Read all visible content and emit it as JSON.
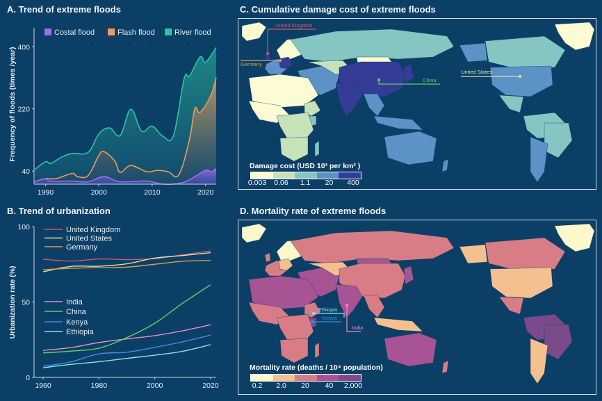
{
  "panels": {
    "a": {
      "title": "A. Trend of extreme floods"
    },
    "b": {
      "title": "B. Trend of urbanization"
    },
    "c": {
      "title": "C. Cumulative damage cost of extreme floods"
    },
    "d": {
      "title": "D. Mortality rate of extreme floods"
    }
  },
  "chart_data": [
    {
      "id": "a",
      "type": "area",
      "title": "A. Trend of extreme floods",
      "xlabel": "",
      "ylabel": "Frequency of floods (times /year)",
      "xlim": [
        1988,
        2022
      ],
      "ylim": [
        2,
        455
      ],
      "xticks": [
        1990,
        2000,
        2010,
        2020
      ],
      "yticks": [
        40,
        220,
        400
      ],
      "legend": {
        "placement": "top",
        "entries": [
          "Costal flood",
          "Flash flood",
          "River flood"
        ]
      },
      "stacked": true,
      "series": [
        {
          "name": "Costal flood",
          "color": "#9d6cf0",
          "x": [
            1988,
            1990,
            1991,
            1995,
            1998,
            2001,
            2004,
            2009,
            2012,
            2015,
            2017,
            2020,
            2021,
            2022
          ],
          "values": [
            9,
            18,
            11,
            11,
            9,
            24,
            9,
            11,
            2,
            4,
            15,
            42,
            38,
            47
          ]
        },
        {
          "name": "Flash flood",
          "color": "#f0995a",
          "x": [
            1988,
            1990,
            1992,
            1995,
            1996,
            1998,
            2000,
            2001,
            2003,
            2004,
            2006,
            2009,
            2011,
            2013,
            2015,
            2017,
            2018,
            2019,
            2021,
            2022
          ],
          "values": [
            9,
            18,
            18,
            33,
            24,
            27,
            85,
            96,
            69,
            36,
            56,
            38,
            42,
            38,
            29,
            132,
            221,
            210,
            259,
            311
          ]
        },
        {
          "name": "River flood",
          "color": "#2fc4a0",
          "x": [
            1988,
            1990,
            1991,
            1993,
            1995,
            1998,
            2000,
            2002,
            2004,
            2006,
            2008,
            2010,
            2012,
            2014,
            2016,
            2017,
            2019,
            2020,
            2022
          ],
          "values": [
            44,
            67,
            62,
            80,
            91,
            94,
            147,
            165,
            143,
            219,
            156,
            170,
            141,
            143,
            308,
            315,
            371,
            355,
            398
          ]
        }
      ]
    },
    {
      "id": "b",
      "type": "line",
      "title": "B. Trend of urbanization",
      "xlabel": "",
      "ylabel": "Urbanization rate (%)",
      "xlim": [
        1957,
        2022
      ],
      "ylim": [
        0,
        100
      ],
      "xticks": [
        1960,
        1980,
        2000,
        2020
      ],
      "yticks": [
        0,
        50,
        100
      ],
      "legend": {
        "placement": "top-left",
        "entries": [
          "United Kingdom",
          "United States",
          "Germany",
          "India",
          "China",
          "Kenya",
          "Ethiopia"
        ]
      },
      "x": [
        1960,
        1970,
        1980,
        1990,
        2000,
        2010,
        2020
      ],
      "series": [
        {
          "name": "United Kingdom",
          "color": "#c9596f",
          "values": [
            78.4,
            77.1,
            78.5,
            78.1,
            78.7,
            81.3,
            83.9
          ]
        },
        {
          "name": "United States",
          "color": "#d9e0a8",
          "values": [
            70.0,
            73.6,
            73.7,
            75.3,
            79.1,
            80.8,
            82.7
          ]
        },
        {
          "name": "Germany",
          "color": "#d9a24a",
          "values": [
            71.4,
            72.3,
            72.8,
            73.1,
            75.0,
            77.0,
            77.5
          ]
        },
        {
          "name": "India",
          "color": "#e890c4",
          "values": [
            17.9,
            19.8,
            23.1,
            25.5,
            27.7,
            30.9,
            34.9
          ]
        },
        {
          "name": "China",
          "color": "#5ad35e",
          "values": [
            16.2,
            17.4,
            19.4,
            26.4,
            35.9,
            49.2,
            61.4
          ]
        },
        {
          "name": "Kenya",
          "color": "#3d8fe0",
          "values": [
            7.4,
            10.3,
            15.6,
            16.7,
            19.9,
            23.6,
            28.0
          ]
        },
        {
          "name": "Ethiopia",
          "color": "#8fe3ec",
          "values": [
            6.4,
            8.6,
            10.4,
            12.6,
            14.7,
            17.3,
            21.7
          ]
        }
      ]
    },
    {
      "id": "c",
      "type": "heatmap",
      "title": "C. Cumulative damage cost of extreme floods",
      "legend": {
        "title": "Damage cost (USD 10³ per km² )",
        "ticks": [
          "0.003",
          "0.06",
          "1.1",
          "20",
          "400"
        ],
        "colors": [
          "#fdfbd3",
          "#c6e2b8",
          "#86c6c2",
          "#5c92c6",
          "#343c98"
        ]
      },
      "annotations": [
        {
          "label": "United Kingdom",
          "color": "#c9596f"
        },
        {
          "label": "Germany",
          "color": "#d9a24a"
        },
        {
          "label": "China",
          "color": "#5ad35e"
        },
        {
          "label": "United States",
          "color": "#d9e0a8"
        }
      ]
    },
    {
      "id": "d",
      "type": "heatmap",
      "title": "D. Mortality rate of extreme floods",
      "legend": {
        "title": "Mortality rate (deaths / 10⁴ population)",
        "ticks": [
          "0.2",
          "2.0",
          "20",
          "40",
          "2,000"
        ],
        "colors": [
          "#fdf8cc",
          "#f5c08f",
          "#d87d85",
          "#a85394",
          "#7b4a8a"
        ]
      },
      "annotations": [
        {
          "label": "Ethiopia",
          "color": "#8fe3ec"
        },
        {
          "label": "Kenya",
          "color": "#3d8fe0"
        },
        {
          "label": "India",
          "color": "#e890c4"
        }
      ]
    }
  ]
}
